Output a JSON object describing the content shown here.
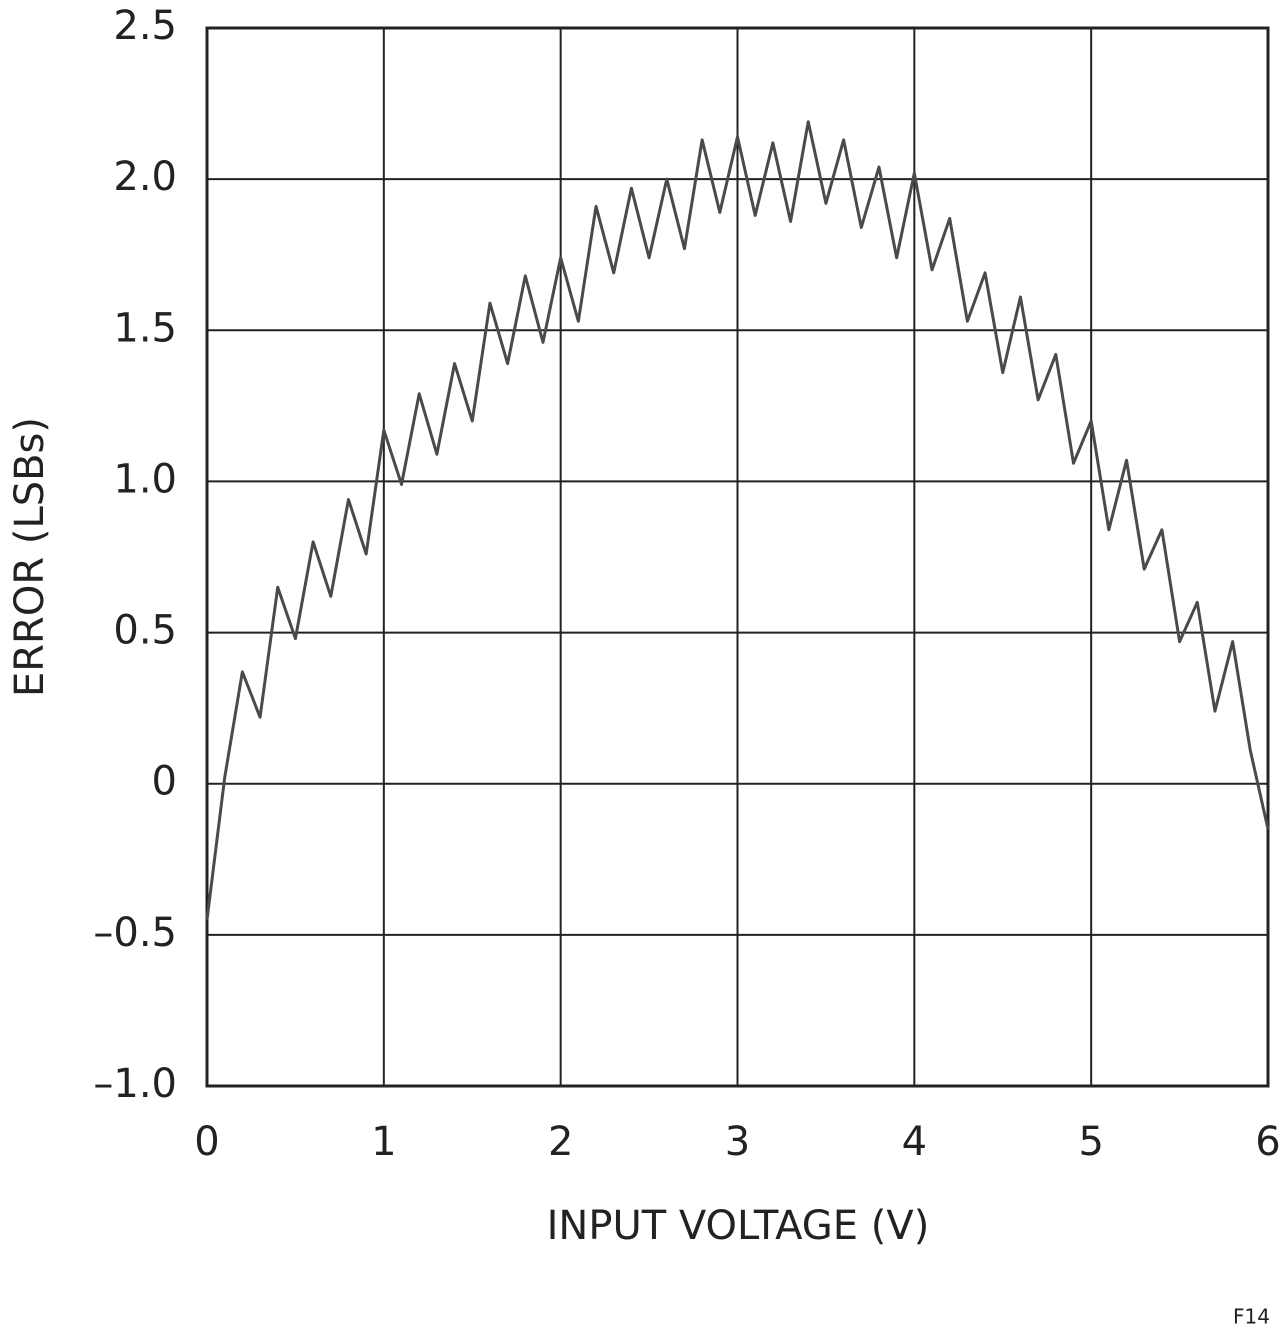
{
  "chart_data": {
    "type": "line",
    "xlabel": "INPUT VOLTAGE (V)",
    "ylabel": "ERROR (LSBs)",
    "note": "F14",
    "x": [
      0,
      0.1,
      0.2,
      0.3,
      0.4,
      0.5,
      0.6,
      0.7,
      0.8,
      0.9,
      1,
      1.1,
      1.2,
      1.3,
      1.4,
      1.5,
      1.6,
      1.7,
      1.8,
      1.9,
      2,
      2.1,
      2.2,
      2.3,
      2.4,
      2.5,
      2.6,
      2.7,
      2.8,
      2.9,
      3,
      3.1,
      3.2,
      3.3,
      3.4,
      3.5,
      3.6,
      3.7,
      3.8,
      3.9,
      4,
      4.1,
      4.2,
      4.3,
      4.4,
      4.5,
      4.6,
      4.7,
      4.8,
      4.9,
      5,
      5.1,
      5.2,
      5.3,
      5.4,
      5.5,
      5.6,
      5.7,
      5.8,
      5.9,
      6
    ],
    "series": [
      {
        "color": "#4a4a4a",
        "values": [
          -0.45,
          0.02,
          0.37,
          0.22,
          0.65,
          0.48,
          0.8,
          0.62,
          0.94,
          0.76,
          1.17,
          0.99,
          1.29,
          1.09,
          1.39,
          1.2,
          1.59,
          1.39,
          1.68,
          1.46,
          1.74,
          1.53,
          1.91,
          1.69,
          1.97,
          1.74,
          2.0,
          1.77,
          2.13,
          1.89,
          2.14,
          1.88,
          2.12,
          1.86,
          2.19,
          1.92,
          2.13,
          1.84,
          2.04,
          1.74,
          2.02,
          1.7,
          1.87,
          1.53,
          1.69,
          1.36,
          1.61,
          1.27,
          1.42,
          1.06,
          1.2,
          0.84,
          1.07,
          0.71,
          0.84,
          0.47,
          0.6,
          0.24,
          0.47,
          0.11,
          -0.15
        ]
      }
    ],
    "xlim": [
      0,
      6
    ],
    "xticks": [
      0,
      1,
      2,
      3,
      4,
      5,
      6
    ],
    "ylim": [
      -1,
      2.5
    ],
    "yticks": [
      {
        "value": -1,
        "label": "–1.0"
      },
      {
        "value": -0.5,
        "label": "–0.5"
      },
      0,
      0.5,
      {
        "value": 1,
        "label": "1.0"
      },
      1.5,
      {
        "value": 2,
        "label": "2.0"
      },
      2.5
    ],
    "grid": true
  }
}
